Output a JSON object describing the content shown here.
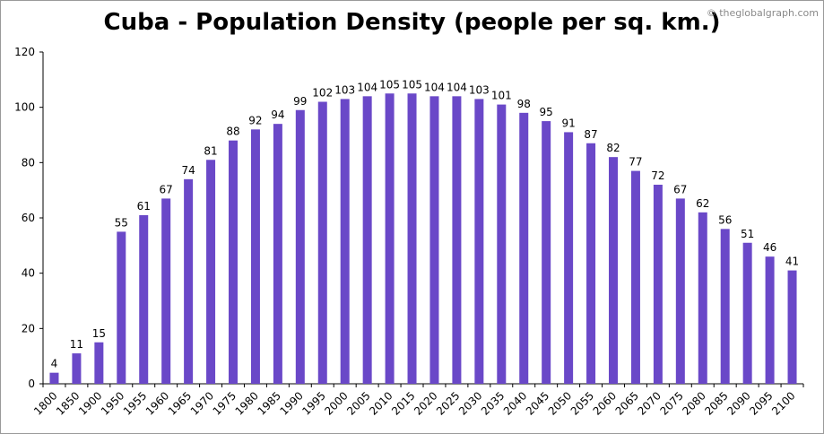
{
  "chart_data": {
    "type": "bar",
    "title": "Cuba - Population Density (people per sq. km.)",
    "watermark": "© theglobalgraph.com",
    "xlabel": "",
    "ylabel": "",
    "ylim": [
      0,
      120
    ],
    "yticks": [
      0,
      20,
      40,
      60,
      80,
      100,
      120
    ],
    "bar_color": "#6a48c8",
    "grid": false,
    "categories": [
      "1800",
      "1850",
      "1900",
      "1950",
      "1955",
      "1960",
      "1965",
      "1970",
      "1975",
      "1980",
      "1985",
      "1990",
      "1995",
      "2000",
      "2005",
      "2010",
      "2015",
      "2020",
      "2025",
      "2030",
      "2035",
      "2040",
      "2045",
      "2050",
      "2055",
      "2060",
      "2065",
      "2070",
      "2075",
      "2080",
      "2085",
      "2090",
      "2095",
      "2100"
    ],
    "values": [
      4,
      11,
      15,
      55,
      61,
      67,
      74,
      81,
      88,
      92,
      94,
      99,
      102,
      103,
      104,
      105,
      105,
      104,
      104,
      103,
      101,
      98,
      95,
      91,
      87,
      82,
      77,
      72,
      67,
      62,
      56,
      51,
      46,
      41
    ]
  }
}
